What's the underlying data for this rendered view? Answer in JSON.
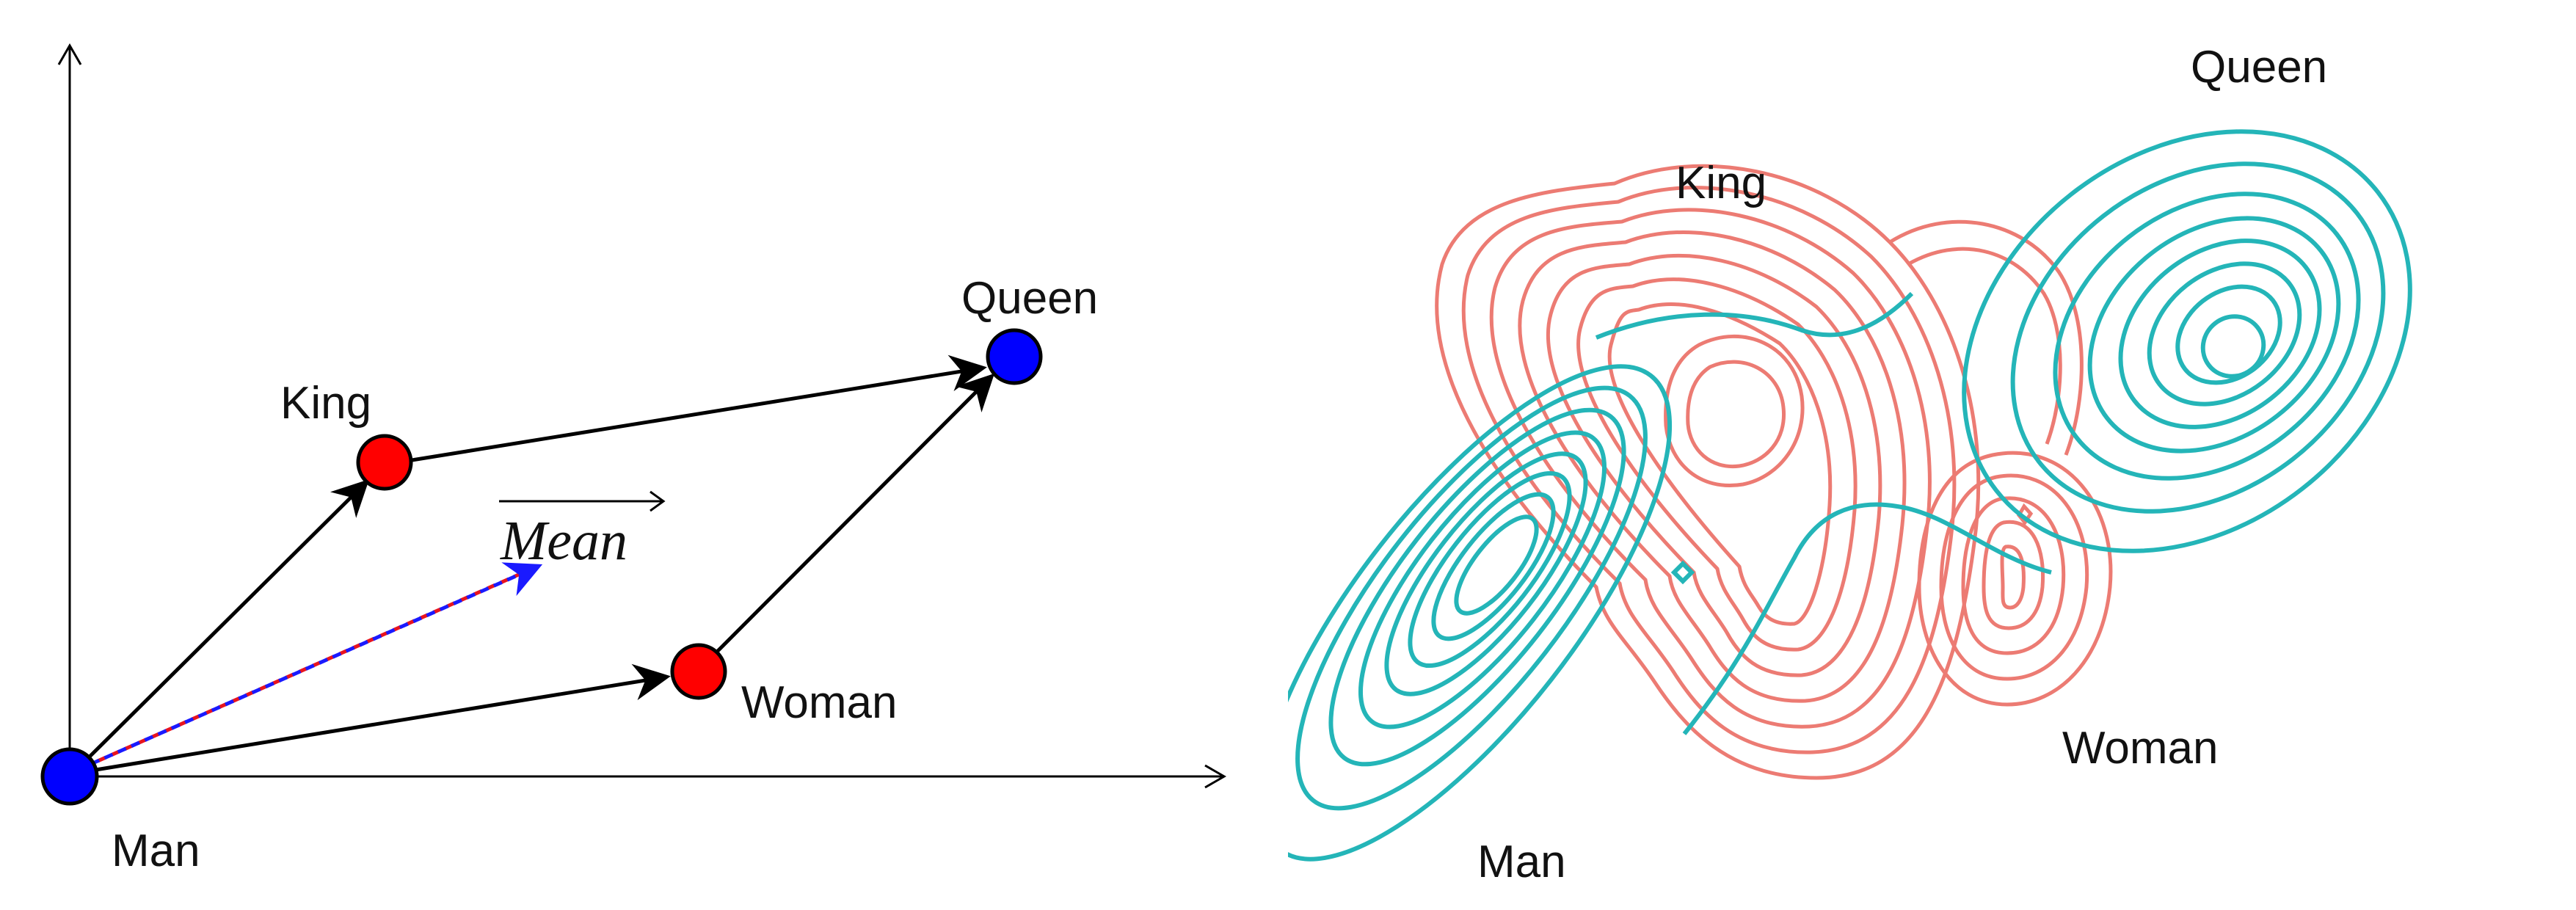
{
  "left": {
    "labels": {
      "man": "Man",
      "king": "King",
      "queen": "Queen",
      "woman": "Woman",
      "mean": "Mean"
    },
    "colors": {
      "red_point": "#ff0000",
      "blue_point": "#0000ff",
      "arrow": "#000000",
      "mean_dash_red": "#e8141e",
      "mean_dash_blue": "#1a1aff"
    }
  },
  "right": {
    "labels": {
      "king": "King",
      "queen": "Queen",
      "man": "Man",
      "woman": "Woman"
    },
    "colors": {
      "red_contours": "#ec7b73",
      "teal_contours": "#24b5b8"
    }
  }
}
